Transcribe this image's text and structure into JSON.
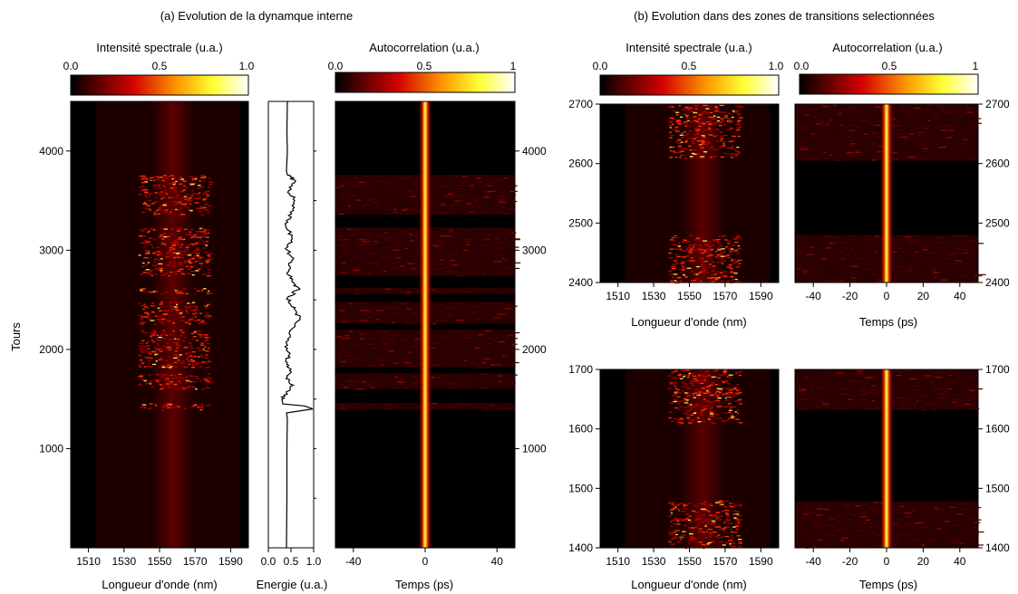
{
  "figure": {
    "section_a_title": "(a) Evolution de la dynamque interne",
    "section_b_title": "(b) Evolution dans des zones de transitions selectionnées"
  },
  "colorbars": {
    "spectral": {
      "label": "Intensité spectrale (u.a.)",
      "ticks": [
        "0.0",
        "0.5",
        "1.0"
      ]
    },
    "autocorr_a": {
      "label": "Autocorrelation (u.a.)",
      "ticks": [
        "0.0",
        "0.5",
        "1"
      ]
    },
    "autocorr_b": {
      "label": "Autocorrelation (u.a.)",
      "ticks": [
        "0.0",
        "0.5",
        "1"
      ]
    }
  },
  "axes": {
    "wavelength_label": "Longueur d'onde (nm)",
    "energy_label": "Energie (u.a.)",
    "time_label": "Temps (ps)",
    "tours_label": "Tours"
  },
  "chart_data": [
    {
      "type": "heatmap",
      "title": "",
      "xlabel": "Longueur d'onde (nm)",
      "ylabel": "Tours",
      "xlim": [
        1500,
        1600
      ],
      "ylim": [
        0,
        4500
      ],
      "xticks": [
        1510,
        1530,
        1550,
        1570,
        1590
      ],
      "yticks": [
        1000,
        2000,
        3000,
        4000
      ],
      "colormap": "hot",
      "clim": [
        0.0,
        1.0
      ],
      "spectral_band_nm": [
        1545,
        1570
      ],
      "noisy_bands_tours": [
        [
          1390,
          1460
        ],
        [
          1600,
          1760
        ],
        [
          1820,
          2200
        ],
        [
          2260,
          2480
        ],
        [
          2560,
          2620
        ],
        [
          2740,
          3230
        ],
        [
          3360,
          3760
        ]
      ]
    },
    {
      "type": "line",
      "title": "",
      "xlabel": "Energie (u.a.)",
      "ylabel": "Tours",
      "xlim": [
        0.0,
        1.0
      ],
      "ylim": [
        0,
        4500
      ],
      "xticks": [
        "0.0",
        "0.5",
        "1.0"
      ],
      "series": [
        {
          "color": "#000000",
          "points": [
            [
              0.4,
              0
            ],
            [
              0.41,
              500
            ],
            [
              0.41,
              1000
            ],
            [
              0.42,
              1300
            ],
            [
              0.4,
              1360
            ],
            [
              0.98,
              1400
            ],
            [
              0.8,
              1430
            ],
            [
              0.32,
              1450
            ],
            [
              0.3,
              1500
            ],
            [
              0.4,
              1560
            ],
            [
              0.55,
              1640
            ],
            [
              0.42,
              1720
            ],
            [
              0.5,
              1800
            ],
            [
              0.38,
              1880
            ],
            [
              0.48,
              1960
            ],
            [
              0.4,
              2060
            ],
            [
              0.46,
              2160
            ],
            [
              0.7,
              2300
            ],
            [
              0.62,
              2380
            ],
            [
              0.5,
              2440
            ],
            [
              0.42,
              2520
            ],
            [
              0.65,
              2600
            ],
            [
              0.6,
              2650
            ],
            [
              0.48,
              2720
            ],
            [
              0.45,
              2800
            ],
            [
              0.52,
              2900
            ],
            [
              0.42,
              3000
            ],
            [
              0.5,
              3100
            ],
            [
              0.44,
              3200
            ],
            [
              0.4,
              3300
            ],
            [
              0.55,
              3400
            ],
            [
              0.58,
              3500
            ],
            [
              0.45,
              3600
            ],
            [
              0.6,
              3700
            ],
            [
              0.42,
              3760
            ],
            [
              0.4,
              3800
            ],
            [
              0.42,
              4000
            ],
            [
              0.41,
              4200
            ],
            [
              0.42,
              4500
            ]
          ]
        }
      ]
    },
    {
      "type": "heatmap",
      "title": "",
      "xlabel": "Temps (ps)",
      "ylabel": "",
      "xlim": [
        -50,
        50
      ],
      "ylim": [
        0,
        4500
      ],
      "xticks": [
        -40,
        0,
        40
      ],
      "yticks": [
        1000,
        2000,
        3000,
        4000
      ],
      "colormap": "hot",
      "clim": [
        0.0,
        1.0
      ],
      "peak_at_ps": 0,
      "noisy_bands_tours": [
        [
          1390,
          1460
        ],
        [
          1600,
          1760
        ],
        [
          1820,
          2200
        ],
        [
          2260,
          2480
        ],
        [
          2560,
          2620
        ],
        [
          2740,
          3230
        ],
        [
          3360,
          3760
        ]
      ]
    },
    {
      "type": "heatmap",
      "title": "",
      "xlabel": "Longueur d'onde (nm)",
      "ylabel": "",
      "xlim": [
        1500,
        1600
      ],
      "ylim": [
        2400,
        2700
      ],
      "xticks": [
        1510,
        1530,
        1550,
        1570,
        1590
      ],
      "yticks": [
        2400,
        2500,
        2600,
        2700
      ],
      "colormap": "hot",
      "clim": [
        0.0,
        1.0
      ],
      "noisy_bands_tours": [
        [
          2400,
          2480
        ],
        [
          2610,
          2700
        ]
      ]
    },
    {
      "type": "heatmap",
      "title": "",
      "xlabel": "Temps (ps)",
      "ylabel": "",
      "xlim": [
        -50,
        50
      ],
      "ylim": [
        2400,
        2700
      ],
      "xticks": [
        -40,
        -20,
        0,
        20,
        40
      ],
      "yticks": [
        2400,
        2500,
        2600,
        2700
      ],
      "colormap": "hot",
      "clim": [
        0.0,
        1.0
      ],
      "noisy_bands_tours": [
        [
          2400,
          2480
        ],
        [
          2605,
          2700
        ]
      ]
    },
    {
      "type": "heatmap",
      "title": "",
      "xlabel": "Longueur d'onde (nm)",
      "ylabel": "",
      "xlim": [
        1500,
        1600
      ],
      "ylim": [
        1400,
        1700
      ],
      "xticks": [
        1510,
        1530,
        1550,
        1570,
        1590
      ],
      "yticks": [
        1400,
        1500,
        1600,
        1700
      ],
      "colormap": "hot",
      "clim": [
        0.0,
        1.0
      ],
      "noisy_bands_tours": [
        [
          1400,
          1480
        ],
        [
          1610,
          1700
        ]
      ]
    },
    {
      "type": "heatmap",
      "title": "",
      "xlabel": "Temps (ps)",
      "ylabel": "",
      "xlim": [
        -50,
        50
      ],
      "ylim": [
        1400,
        1700
      ],
      "xticks": [
        -40,
        -20,
        0,
        20,
        40
      ],
      "yticks": [
        1400,
        1500,
        1600,
        1700
      ],
      "colormap": "hot",
      "clim": [
        0.0,
        1.0
      ],
      "noisy_bands_tours": [
        [
          1400,
          1478
        ],
        [
          1632,
          1700
        ]
      ]
    }
  ]
}
